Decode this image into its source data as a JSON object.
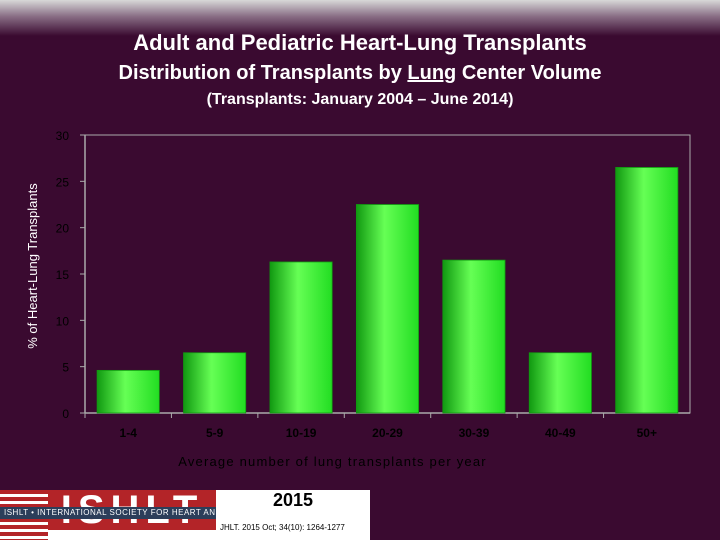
{
  "header": {
    "title": "Adult and Pediatric Heart-Lung Transplants",
    "subtitle_prefix": "Distribution of Transplants by ",
    "subtitle_emph": "Lung",
    "subtitle_suffix": " Center Volume",
    "period": "(Transplants: January 2004 – June 2014)"
  },
  "chart_data": {
    "type": "bar",
    "title": "Adult and Pediatric Heart-Lung Transplants",
    "xlabel": "Average number of lung transplants per year",
    "ylabel": "% of Heart-Lung Transplants",
    "categories": [
      "1-4",
      "5-9",
      "10-19",
      "20-29",
      "30-39",
      "40-49",
      "50+"
    ],
    "values": [
      4.6,
      6.5,
      16.3,
      22.5,
      16.5,
      6.5,
      26.5
    ],
    "ylim": [
      0,
      30
    ],
    "yticks": [
      0,
      5,
      10,
      15,
      20,
      25,
      30
    ],
    "grid": false,
    "colors": {
      "bar": "#22dd22",
      "bar_light": "#66ff55",
      "bar_dark": "#119911",
      "axis": "#aaaaaa",
      "plot_bg": "#3a0a30"
    }
  },
  "footer": {
    "logo_text": "ISHLT",
    "society": "ISHLT • INTERNATIONAL SOCIETY FOR HEART AND LUNG TRANSPLANTATION",
    "year": "2015",
    "citation": "JHLT. 2015 Oct; 34(10): 1264-1277"
  }
}
